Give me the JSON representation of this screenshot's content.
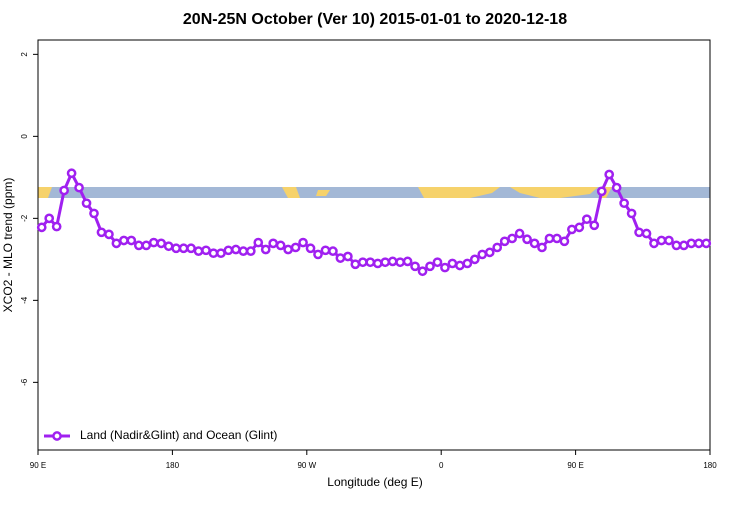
{
  "chart_data": {
    "type": "line",
    "title": "20N-25N October (Ver 10)   2015-01-01 to 2020-12-18",
    "x_label": "Longitude (deg E)",
    "y_label": "XCO2 - MLO trend (ppm)",
    "xlim": [
      90,
      540
    ],
    "ylim": [
      -7.65,
      2.35
    ],
    "xticks": [
      {
        "value": 90,
        "label": "90 E"
      },
      {
        "value": 180,
        "label": "180"
      },
      {
        "value": 270,
        "label": "90 W"
      },
      {
        "value": 360,
        "label": "0"
      },
      {
        "value": 450,
        "label": "90 E"
      },
      {
        "value": 540,
        "label": "180"
      }
    ],
    "yticks": [
      -6,
      -4,
      -2,
      0,
      2
    ],
    "legend_position": "bottom-left",
    "x": [
      92.5,
      97.5,
      102.5,
      107.5,
      112.5,
      117.5,
      122.5,
      127.5,
      132.5,
      137.5,
      142.5,
      147.5,
      152.5,
      157.5,
      162.5,
      167.5,
      172.5,
      177.5,
      182.5,
      187.5,
      192.5,
      197.5,
      202.5,
      207.5,
      212.5,
      217.5,
      222.5,
      227.5,
      232.5,
      237.5,
      242.5,
      247.5,
      252.5,
      257.5,
      262.5,
      267.5,
      272.5,
      277.5,
      282.5,
      287.5,
      292.5,
      297.5,
      302.5,
      307.5,
      312.5,
      317.5,
      322.5,
      327.5,
      332.5,
      337.5,
      342.5,
      347.5,
      352.5,
      357.5,
      362.5,
      367.5,
      372.5,
      377.5,
      382.5,
      387.5,
      392.5,
      397.5,
      402.5,
      407.5,
      412.5,
      417.5,
      422.5,
      427.5,
      432.5,
      437.5,
      442.5,
      447.5,
      452.5,
      457.5,
      462.5,
      467.5,
      472.5,
      477.5,
      482.5,
      487.5,
      492.5,
      497.5,
      502.5,
      507.5,
      512.5,
      517.5,
      522.5,
      527.5,
      532.5,
      537.5
    ],
    "series": [
      {
        "name": "Land (Nadir&Glint) and Ocean (Glint)",
        "color": "#a020f0",
        "values": [
          -2.22,
          -2.0,
          -2.2,
          -1.32,
          -0.9,
          -1.25,
          -1.63,
          -1.88,
          -2.34,
          -2.39,
          -2.61,
          -2.54,
          -2.54,
          -2.66,
          -2.66,
          -2.59,
          -2.61,
          -2.68,
          -2.73,
          -2.73,
          -2.73,
          -2.8,
          -2.78,
          -2.85,
          -2.85,
          -2.78,
          -2.76,
          -2.8,
          -2.8,
          -2.59,
          -2.76,
          -2.61,
          -2.66,
          -2.76,
          -2.71,
          -2.59,
          -2.73,
          -2.88,
          -2.78,
          -2.8,
          -2.97,
          -2.93,
          -3.12,
          -3.07,
          -3.07,
          -3.1,
          -3.07,
          -3.05,
          -3.07,
          -3.05,
          -3.17,
          -3.29,
          -3.17,
          -3.07,
          -3.2,
          -3.1,
          -3.15,
          -3.1,
          -3.0,
          -2.88,
          -2.83,
          -2.71,
          -2.56,
          -2.49,
          -2.37,
          -2.51,
          -2.61,
          -2.71,
          -2.49,
          -2.49,
          -2.56,
          -2.27,
          -2.22,
          -2.02,
          -2.17,
          -1.34,
          -0.93,
          -1.25,
          -1.63,
          -1.88,
          -2.34,
          -2.37,
          -2.61,
          -2.54,
          -2.54,
          -2.66,
          -2.66,
          -2.61,
          -2.61,
          -2.61
        ]
      }
    ]
  }
}
